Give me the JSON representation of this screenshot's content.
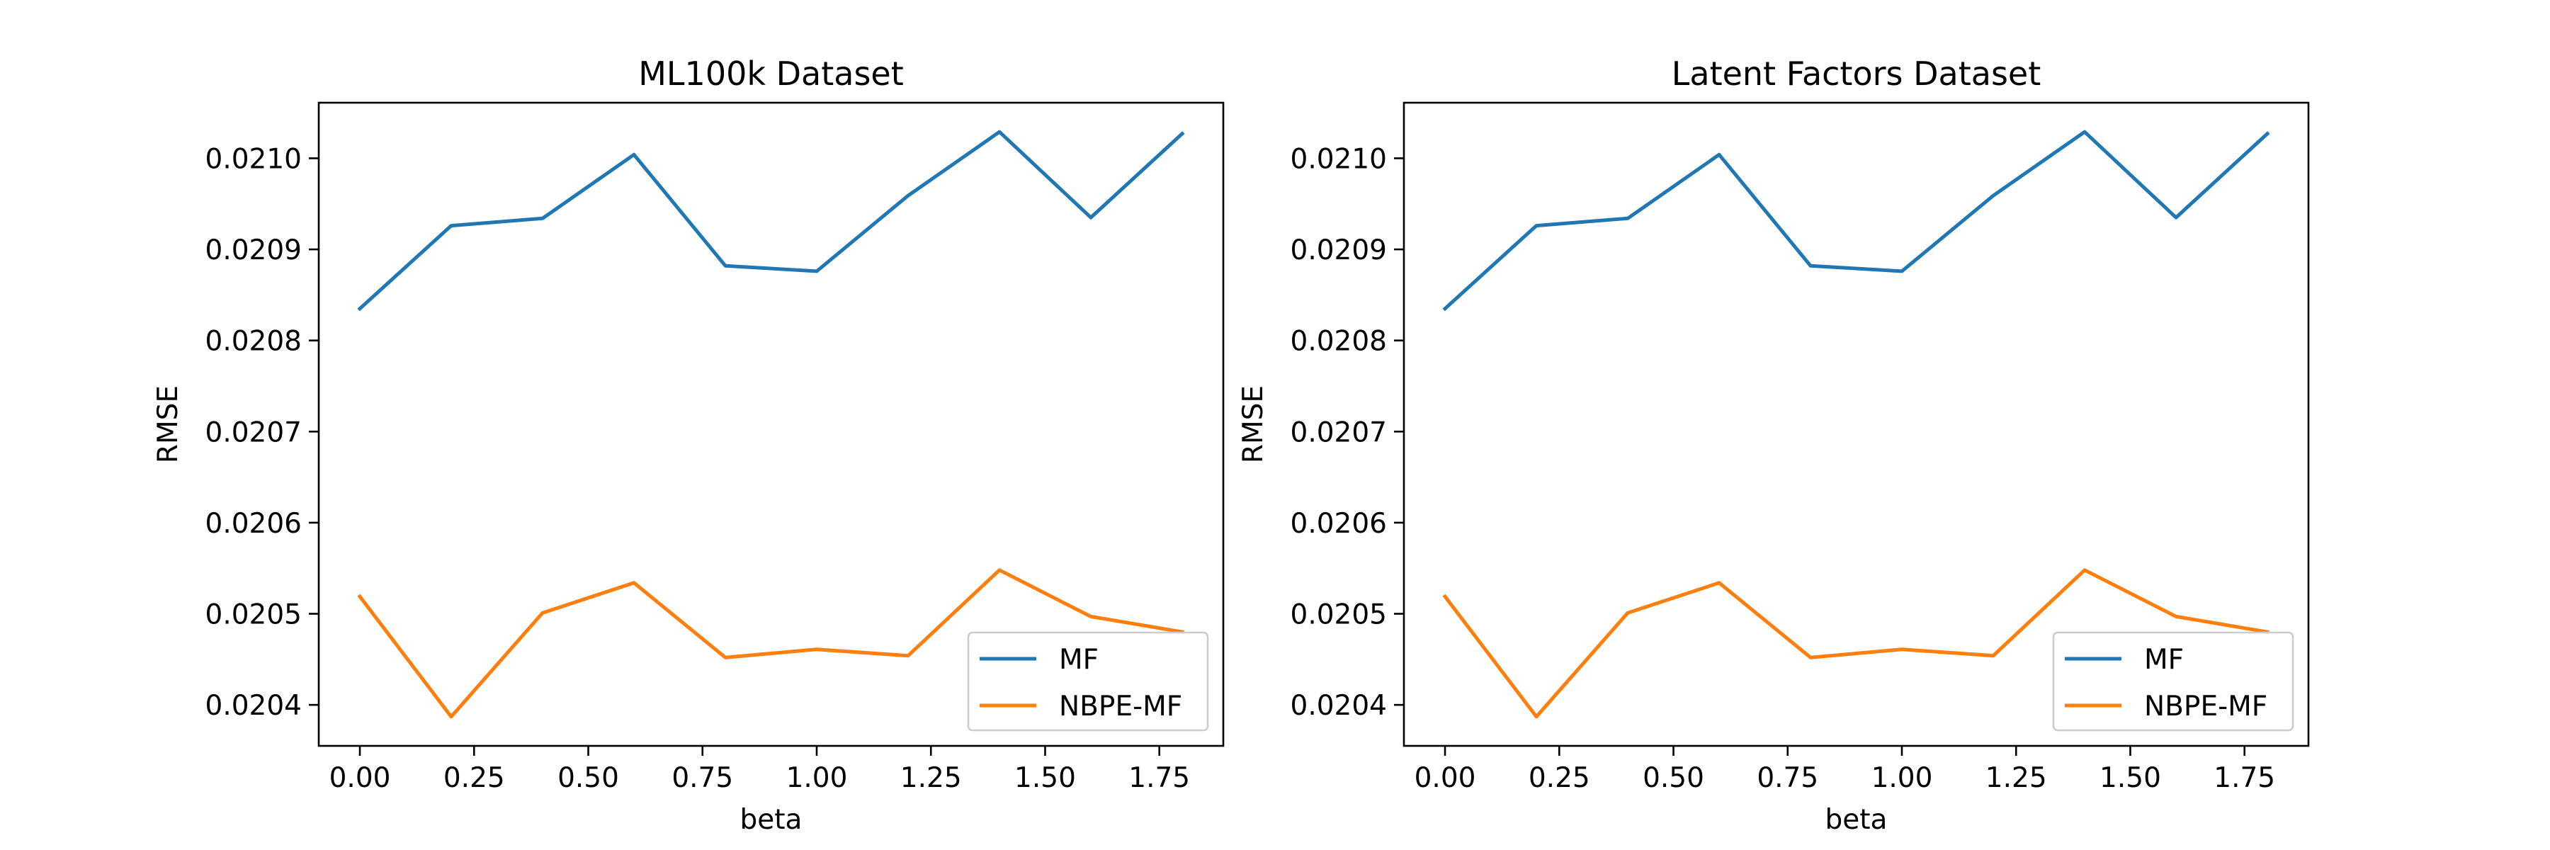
{
  "chart_data": [
    {
      "type": "line",
      "title": "ML100k Dataset",
      "xlabel": "beta",
      "ylabel": "RMSE",
      "x": [
        0.0,
        0.2,
        0.4,
        0.6,
        0.8,
        1.0,
        1.2,
        1.4,
        1.6,
        1.8
      ],
      "xlim": [
        -0.09,
        1.89
      ],
      "ylim": [
        0.020355,
        0.021061
      ],
      "xticks": [
        0.0,
        0.25,
        0.5,
        0.75,
        1.0,
        1.25,
        1.5,
        1.75
      ],
      "xtick_labels": [
        "0.00",
        "0.25",
        "0.50",
        "0.75",
        "1.00",
        "1.25",
        "1.50",
        "1.75"
      ],
      "yticks": [
        0.0204,
        0.0205,
        0.0206,
        0.0207,
        0.0208,
        0.0209,
        0.021
      ],
      "ytick_labels": [
        "0.0204",
        "0.0205",
        "0.0206",
        "0.0207",
        "0.0208",
        "0.0209",
        "0.0210"
      ],
      "grid": false,
      "legend": "lower-right",
      "series": [
        {
          "name": "MF",
          "color": "#1f77b4",
          "values": [
            0.020835,
            0.020926,
            0.020934,
            0.021004,
            0.020882,
            0.020876,
            0.020959,
            0.021029,
            0.020935,
            0.021027
          ]
        },
        {
          "name": "NBPE-MF",
          "color": "#ff7f0e",
          "values": [
            0.020519,
            0.020387,
            0.020501,
            0.020534,
            0.020452,
            0.020461,
            0.020454,
            0.020548,
            0.020497,
            0.02048
          ]
        }
      ]
    },
    {
      "type": "line",
      "title": "Latent Factors Dataset",
      "xlabel": "beta",
      "ylabel": "RMSE",
      "x": [
        0.0,
        0.2,
        0.4,
        0.6,
        0.8,
        1.0,
        1.2,
        1.4,
        1.6,
        1.8
      ],
      "xlim": [
        -0.09,
        1.89
      ],
      "ylim": [
        0.020355,
        0.021061
      ],
      "xticks": [
        0.0,
        0.25,
        0.5,
        0.75,
        1.0,
        1.25,
        1.5,
        1.75
      ],
      "xtick_labels": [
        "0.00",
        "0.25",
        "0.50",
        "0.75",
        "1.00",
        "1.25",
        "1.50",
        "1.75"
      ],
      "yticks": [
        0.0204,
        0.0205,
        0.0206,
        0.0207,
        0.0208,
        0.0209,
        0.021
      ],
      "ytick_labels": [
        "0.0204",
        "0.0205",
        "0.0206",
        "0.0207",
        "0.0208",
        "0.0209",
        "0.0210"
      ],
      "grid": false,
      "legend": "lower-right",
      "series": [
        {
          "name": "MF",
          "color": "#1f77b4",
          "values": [
            0.020835,
            0.020926,
            0.020934,
            0.021004,
            0.020882,
            0.020876,
            0.020959,
            0.021029,
            0.020935,
            0.021027
          ]
        },
        {
          "name": "NBPE-MF",
          "color": "#ff7f0e",
          "values": [
            0.020519,
            0.020387,
            0.020501,
            0.020534,
            0.020452,
            0.020461,
            0.020454,
            0.020548,
            0.020497,
            0.02048
          ]
        }
      ]
    }
  ]
}
